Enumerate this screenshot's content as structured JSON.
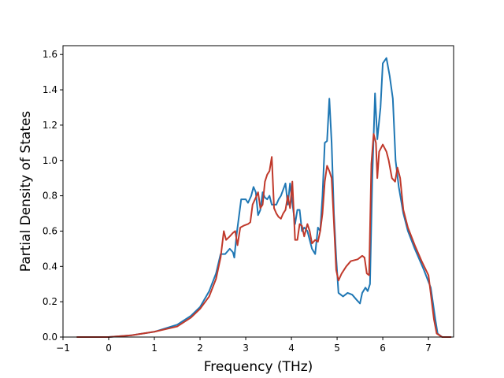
{
  "chart_data": {
    "type": "line",
    "title": "",
    "xlabel": "Frequency (THz)",
    "ylabel": "Partial Density of States",
    "xlim": [
      -1.0,
      7.55
    ],
    "ylim": [
      0.0,
      1.65
    ],
    "xticks": [
      -1,
      0,
      1,
      2,
      3,
      4,
      5,
      6,
      7
    ],
    "yticks": [
      0.0,
      0.2,
      0.4,
      0.6,
      0.8,
      1.0,
      1.2,
      1.4,
      1.6
    ],
    "ytick_labels": [
      "0.0",
      "0.2",
      "0.4",
      "0.6",
      "0.8",
      "1.0",
      "1.2",
      "1.4",
      "1.6"
    ],
    "grid": false,
    "legend": "none",
    "series": [
      {
        "color": "#1f77b4",
        "points": [
          [
            -0.7,
            0.0
          ],
          [
            0.0,
            0.0
          ],
          [
            0.5,
            0.01
          ],
          [
            1.0,
            0.03
          ],
          [
            1.5,
            0.07
          ],
          [
            1.8,
            0.12
          ],
          [
            2.0,
            0.17
          ],
          [
            2.2,
            0.26
          ],
          [
            2.35,
            0.36
          ],
          [
            2.45,
            0.47
          ],
          [
            2.55,
            0.47
          ],
          [
            2.65,
            0.5
          ],
          [
            2.72,
            0.48
          ],
          [
            2.75,
            0.45
          ],
          [
            2.8,
            0.58
          ],
          [
            2.9,
            0.78
          ],
          [
            3.0,
            0.78
          ],
          [
            3.05,
            0.76
          ],
          [
            3.12,
            0.8
          ],
          [
            3.17,
            0.85
          ],
          [
            3.22,
            0.82
          ],
          [
            3.27,
            0.69
          ],
          [
            3.32,
            0.72
          ],
          [
            3.37,
            0.82
          ],
          [
            3.42,
            0.79
          ],
          [
            3.47,
            0.78
          ],
          [
            3.52,
            0.8
          ],
          [
            3.57,
            0.75
          ],
          [
            3.67,
            0.75
          ],
          [
            3.72,
            0.78
          ],
          [
            3.77,
            0.8
          ],
          [
            3.87,
            0.87
          ],
          [
            3.92,
            0.75
          ],
          [
            3.97,
            0.87
          ],
          [
            4.02,
            0.76
          ],
          [
            4.08,
            0.64
          ],
          [
            4.13,
            0.72
          ],
          [
            4.18,
            0.72
          ],
          [
            4.23,
            0.6
          ],
          [
            4.28,
            0.62
          ],
          [
            4.35,
            0.6
          ],
          [
            4.4,
            0.55
          ],
          [
            4.45,
            0.5
          ],
          [
            4.52,
            0.47
          ],
          [
            4.58,
            0.62
          ],
          [
            4.63,
            0.6
          ],
          [
            4.68,
            0.8
          ],
          [
            4.73,
            1.1
          ],
          [
            4.78,
            1.11
          ],
          [
            4.83,
            1.35
          ],
          [
            4.88,
            1.1
          ],
          [
            4.93,
            0.7
          ],
          [
            4.98,
            0.45
          ],
          [
            5.03,
            0.25
          ],
          [
            5.13,
            0.23
          ],
          [
            5.23,
            0.25
          ],
          [
            5.33,
            0.24
          ],
          [
            5.43,
            0.21
          ],
          [
            5.5,
            0.19
          ],
          [
            5.55,
            0.25
          ],
          [
            5.62,
            0.28
          ],
          [
            5.67,
            0.26
          ],
          [
            5.72,
            0.3
          ],
          [
            5.77,
            0.9
          ],
          [
            5.83,
            1.38
          ],
          [
            5.88,
            1.12
          ],
          [
            5.95,
            1.3
          ],
          [
            6.0,
            1.55
          ],
          [
            6.08,
            1.58
          ],
          [
            6.15,
            1.48
          ],
          [
            6.22,
            1.35
          ],
          [
            6.28,
            1.0
          ],
          [
            6.35,
            0.85
          ],
          [
            6.45,
            0.7
          ],
          [
            6.55,
            0.6
          ],
          [
            6.7,
            0.5
          ],
          [
            6.9,
            0.38
          ],
          [
            7.05,
            0.28
          ],
          [
            7.15,
            0.1
          ],
          [
            7.2,
            0.02
          ],
          [
            7.3,
            0.0
          ],
          [
            7.5,
            0.0
          ]
        ]
      },
      {
        "color": "#c0392b",
        "points": [
          [
            -0.7,
            0.0
          ],
          [
            0.0,
            0.0
          ],
          [
            0.5,
            0.01
          ],
          [
            1.0,
            0.03
          ],
          [
            1.5,
            0.06
          ],
          [
            1.8,
            0.11
          ],
          [
            2.0,
            0.16
          ],
          [
            2.2,
            0.23
          ],
          [
            2.35,
            0.33
          ],
          [
            2.45,
            0.45
          ],
          [
            2.52,
            0.6
          ],
          [
            2.57,
            0.55
          ],
          [
            2.65,
            0.57
          ],
          [
            2.72,
            0.59
          ],
          [
            2.77,
            0.6
          ],
          [
            2.82,
            0.52
          ],
          [
            2.88,
            0.62
          ],
          [
            2.95,
            0.63
          ],
          [
            3.05,
            0.64
          ],
          [
            3.1,
            0.65
          ],
          [
            3.15,
            0.75
          ],
          [
            3.22,
            0.79
          ],
          [
            3.27,
            0.82
          ],
          [
            3.32,
            0.73
          ],
          [
            3.37,
            0.75
          ],
          [
            3.42,
            0.88
          ],
          [
            3.47,
            0.92
          ],
          [
            3.52,
            0.94
          ],
          [
            3.57,
            1.02
          ],
          [
            3.62,
            0.73
          ],
          [
            3.67,
            0.7
          ],
          [
            3.72,
            0.68
          ],
          [
            3.77,
            0.67
          ],
          [
            3.82,
            0.7
          ],
          [
            3.87,
            0.72
          ],
          [
            3.92,
            0.8
          ],
          [
            3.97,
            0.73
          ],
          [
            4.02,
            0.88
          ],
          [
            4.08,
            0.55
          ],
          [
            4.13,
            0.55
          ],
          [
            4.18,
            0.64
          ],
          [
            4.23,
            0.63
          ],
          [
            4.28,
            0.57
          ],
          [
            4.35,
            0.64
          ],
          [
            4.4,
            0.6
          ],
          [
            4.45,
            0.53
          ],
          [
            4.52,
            0.55
          ],
          [
            4.58,
            0.54
          ],
          [
            4.63,
            0.6
          ],
          [
            4.68,
            0.7
          ],
          [
            4.73,
            0.88
          ],
          [
            4.78,
            0.97
          ],
          [
            4.83,
            0.94
          ],
          [
            4.88,
            0.9
          ],
          [
            4.93,
            0.65
          ],
          [
            4.98,
            0.38
          ],
          [
            5.03,
            0.32
          ],
          [
            5.1,
            0.36
          ],
          [
            5.2,
            0.4
          ],
          [
            5.3,
            0.43
          ],
          [
            5.45,
            0.44
          ],
          [
            5.55,
            0.46
          ],
          [
            5.6,
            0.45
          ],
          [
            5.65,
            0.36
          ],
          [
            5.7,
            0.35
          ],
          [
            5.75,
            0.98
          ],
          [
            5.8,
            1.15
          ],
          [
            5.85,
            1.1
          ],
          [
            5.88,
            0.9
          ],
          [
            5.92,
            1.05
          ],
          [
            6.0,
            1.09
          ],
          [
            6.08,
            1.05
          ],
          [
            6.13,
            1.0
          ],
          [
            6.2,
            0.9
          ],
          [
            6.27,
            0.88
          ],
          [
            6.32,
            0.96
          ],
          [
            6.38,
            0.9
          ],
          [
            6.45,
            0.72
          ],
          [
            6.55,
            0.62
          ],
          [
            6.7,
            0.52
          ],
          [
            6.85,
            0.43
          ],
          [
            7.0,
            0.35
          ],
          [
            7.12,
            0.1
          ],
          [
            7.18,
            0.02
          ],
          [
            7.3,
            0.0
          ],
          [
            7.5,
            0.0
          ]
        ]
      }
    ]
  }
}
